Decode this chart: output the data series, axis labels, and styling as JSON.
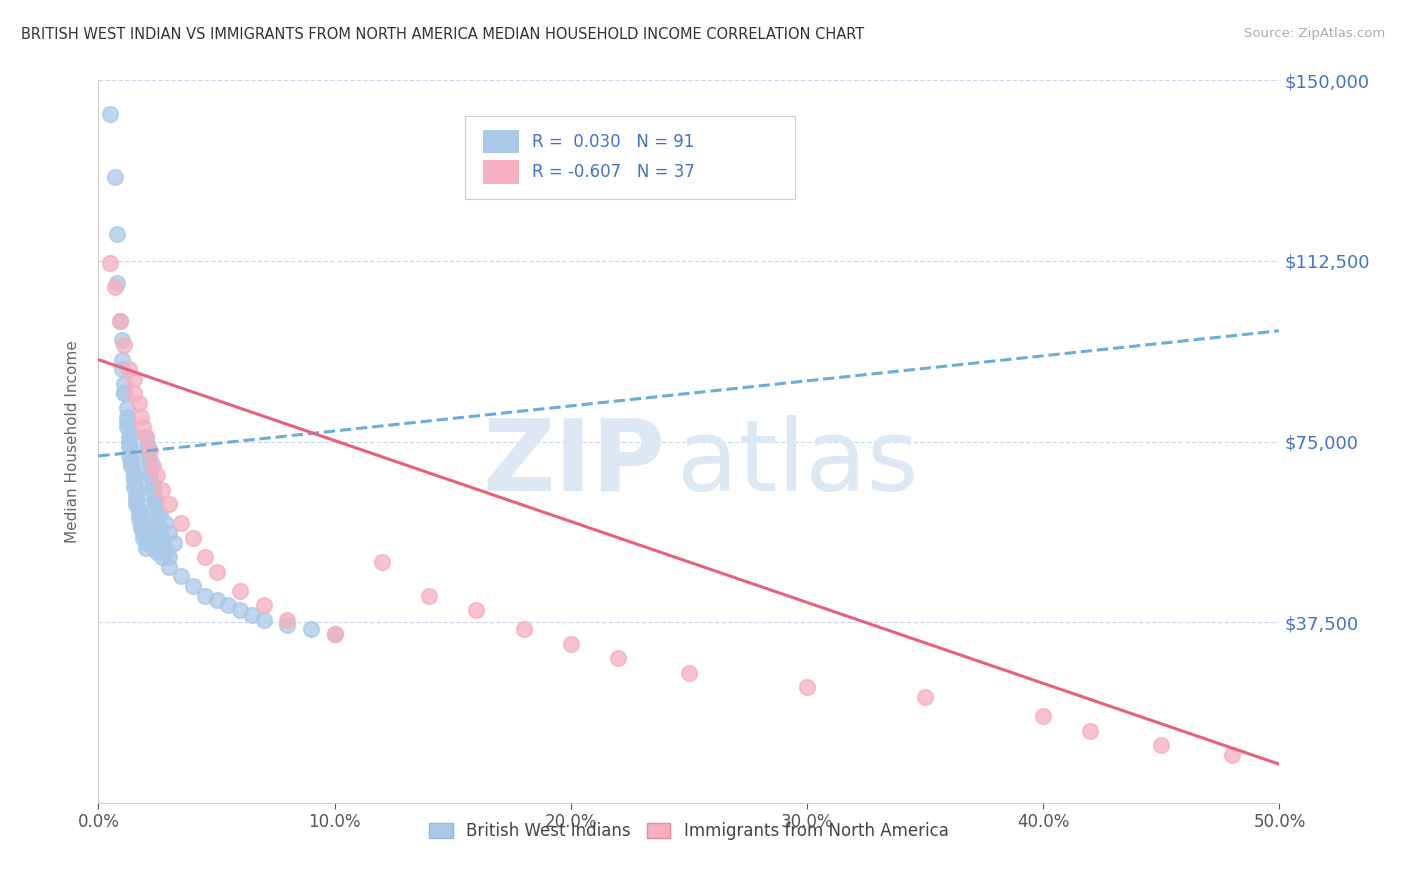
{
  "title": "BRITISH WEST INDIAN VS IMMIGRANTS FROM NORTH AMERICA MEDIAN HOUSEHOLD INCOME CORRELATION CHART",
  "source": "Source: ZipAtlas.com",
  "ylabel": "Median Household Income",
  "xlim": [
    0.0,
    0.5
  ],
  "ylim": [
    0,
    150000
  ],
  "yticks": [
    0,
    37500,
    75000,
    112500,
    150000
  ],
  "ytick_labels": [
    "",
    "$37,500",
    "$75,000",
    "$112,500",
    "$150,000"
  ],
  "xtick_labels": [
    "0.0%",
    "10.0%",
    "20.0%",
    "30.0%",
    "40.0%",
    "50.0%"
  ],
  "xticks": [
    0.0,
    0.1,
    0.2,
    0.3,
    0.4,
    0.5
  ],
  "blue_color": "#aac9e8",
  "pink_color": "#f5afc0",
  "blue_line_color": "#6aaed6",
  "pink_line_color": "#e8607a",
  "grid_color": "#c8d8ec",
  "legend_label1": "British West Indians",
  "legend_label2": "Immigrants from North America",
  "blue_r": "0.030",
  "blue_n": "91",
  "pink_r": "-0.607",
  "pink_n": "37",
  "blue_trend_x": [
    0.0,
    0.5
  ],
  "blue_trend_y": [
    72000,
    98000
  ],
  "pink_trend_x": [
    0.0,
    0.5
  ],
  "pink_trend_y": [
    92000,
    8000
  ],
  "blue_x": [
    0.005,
    0.007,
    0.008,
    0.008,
    0.009,
    0.01,
    0.01,
    0.011,
    0.011,
    0.012,
    0.012,
    0.013,
    0.013,
    0.013,
    0.014,
    0.014,
    0.015,
    0.015,
    0.015,
    0.016,
    0.016,
    0.017,
    0.017,
    0.017,
    0.018,
    0.018,
    0.019,
    0.019,
    0.02,
    0.02,
    0.02,
    0.021,
    0.021,
    0.022,
    0.022,
    0.022,
    0.023,
    0.023,
    0.024,
    0.024,
    0.025,
    0.025,
    0.025,
    0.026,
    0.026,
    0.027,
    0.027,
    0.028,
    0.029,
    0.03,
    0.01,
    0.011,
    0.012,
    0.013,
    0.014,
    0.015,
    0.016,
    0.016,
    0.017,
    0.018,
    0.018,
    0.019,
    0.02,
    0.021,
    0.022,
    0.023,
    0.025,
    0.027,
    0.03,
    0.035,
    0.04,
    0.045,
    0.05,
    0.055,
    0.06,
    0.065,
    0.07,
    0.08,
    0.09,
    0.1,
    0.012,
    0.014,
    0.016,
    0.018,
    0.02,
    0.022,
    0.024,
    0.026,
    0.028,
    0.03,
    0.032
  ],
  "blue_y": [
    143000,
    130000,
    118000,
    108000,
    100000,
    96000,
    90000,
    87000,
    85000,
    82000,
    78000,
    76000,
    74000,
    72000,
    71000,
    70000,
    68000,
    67000,
    65500,
    64000,
    62000,
    61000,
    60000,
    59000,
    58000,
    57000,
    56000,
    55000,
    54000,
    53000,
    76000,
    74000,
    73000,
    71000,
    70000,
    68000,
    66000,
    65000,
    63000,
    62000,
    60000,
    59000,
    58000,
    57000,
    56000,
    55000,
    54000,
    53000,
    52000,
    51000,
    92000,
    85000,
    79000,
    75000,
    71000,
    68000,
    65000,
    63000,
    61000,
    60000,
    58000,
    57000,
    56000,
    55000,
    54000,
    53000,
    52000,
    51000,
    49000,
    47000,
    45000,
    43000,
    42000,
    41000,
    40000,
    39000,
    38000,
    37000,
    36000,
    35000,
    80000,
    77000,
    73000,
    70000,
    67000,
    64000,
    62000,
    60000,
    58000,
    56000,
    54000
  ],
  "pink_x": [
    0.005,
    0.007,
    0.009,
    0.011,
    0.013,
    0.015,
    0.015,
    0.017,
    0.018,
    0.019,
    0.02,
    0.022,
    0.023,
    0.025,
    0.027,
    0.03,
    0.035,
    0.04,
    0.045,
    0.05,
    0.06,
    0.07,
    0.08,
    0.1,
    0.12,
    0.14,
    0.16,
    0.18,
    0.2,
    0.22,
    0.25,
    0.3,
    0.35,
    0.4,
    0.42,
    0.45,
    0.48
  ],
  "pink_y": [
    112000,
    107000,
    100000,
    95000,
    90000,
    88000,
    85000,
    83000,
    80000,
    78000,
    76000,
    73000,
    70000,
    68000,
    65000,
    62000,
    58000,
    55000,
    51000,
    48000,
    44000,
    41000,
    38000,
    35000,
    50000,
    43000,
    40000,
    36000,
    33000,
    30000,
    27000,
    24000,
    22000,
    18000,
    15000,
    12000,
    10000
  ]
}
